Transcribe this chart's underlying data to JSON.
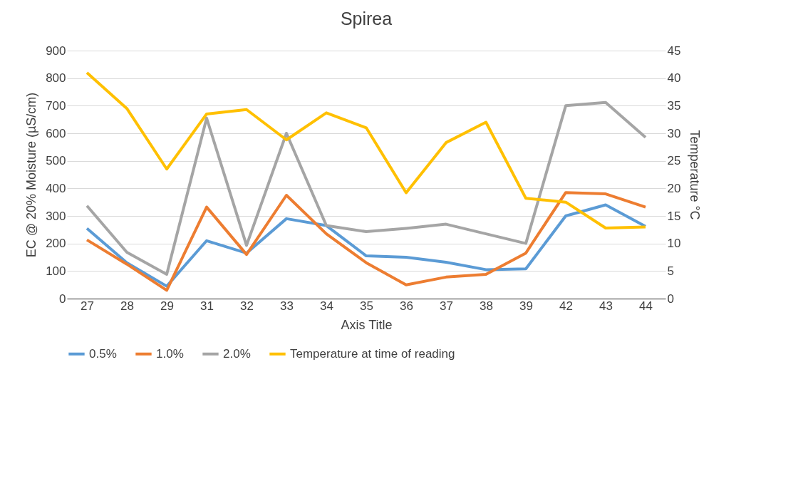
{
  "chart_data": {
    "type": "line",
    "title": "Spirea",
    "xlabel": "Axis Title",
    "ylabel": "EC @ 20% Moisture (µS/cm)",
    "y2label": "Temperature °C",
    "categories": [
      "27",
      "28",
      "29",
      "31",
      "32",
      "33",
      "34",
      "35",
      "36",
      "37",
      "38",
      "39",
      "42",
      "43",
      "44"
    ],
    "series": [
      {
        "name": "0.5%",
        "color": "#5b9bd5",
        "values": [
          255,
          130,
          45,
          210,
          165,
          290,
          265,
          155,
          150,
          132,
          105,
          108,
          300,
          340,
          262
        ]
      },
      {
        "name": "1.0%",
        "color": "#ed7d31",
        "values": [
          213,
          125,
          30,
          332,
          160,
          375,
          235,
          130,
          50,
          78,
          88,
          165,
          385,
          380,
          332
        ]
      },
      {
        "name": "2.0%",
        "color": "#a5a5a5",
        "values": [
          337,
          168,
          88,
          655,
          193,
          600,
          265,
          243,
          255,
          270,
          235,
          200,
          700,
          712,
          585
        ]
      },
      {
        "name": "Temperature at time of reading",
        "color": "#ffc000",
        "axis": "y2",
        "values": [
          41,
          34.5,
          23.5,
          33.5,
          34.3,
          28.8,
          33.7,
          31,
          19.2,
          28.3,
          32,
          18.2,
          17.5,
          12.8,
          13
        ]
      }
    ],
    "ylim": [
      0,
      900
    ],
    "yticks": [
      0,
      100,
      200,
      300,
      400,
      500,
      600,
      700,
      800,
      900
    ],
    "y2lim": [
      0,
      45
    ],
    "y2ticks": [
      0,
      5,
      10,
      15,
      20,
      25,
      30,
      35,
      40,
      45
    ],
    "grid": "y",
    "legend": "bottom"
  }
}
